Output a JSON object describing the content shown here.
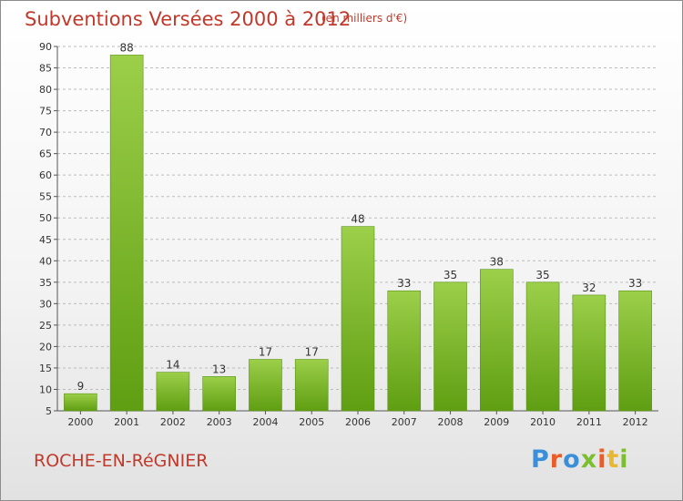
{
  "title": "Subventions Versées 2000 à 2012",
  "unit": "(en milliers d'€)",
  "commune": "ROCHE-EN-RéGNIER",
  "logo": {
    "text": "Proxiti",
    "letter_colors": [
      "#3b8fd9",
      "#e85d2a",
      "#3b8fd9",
      "#7bbf2e",
      "#e85d2a",
      "#e8b830",
      "#7bbf2e"
    ]
  },
  "colors": {
    "title": "#c0392b",
    "bar_light": "#9ccf4a",
    "bar_dark": "#5f9e12",
    "grid": "#bbbbbb"
  },
  "chart_data": {
    "type": "bar",
    "categories": [
      "2000",
      "2001",
      "2002",
      "2003",
      "2004",
      "2005",
      "2006",
      "2007",
      "2008",
      "2009",
      "2010",
      "2011",
      "2012"
    ],
    "values": [
      9,
      88,
      14,
      13,
      17,
      17,
      48,
      33,
      35,
      38,
      35,
      32,
      33
    ],
    "ylim": [
      5,
      90
    ],
    "yticks": [
      5,
      10,
      15,
      20,
      25,
      30,
      35,
      40,
      45,
      50,
      55,
      60,
      65,
      70,
      75,
      80,
      85,
      90
    ],
    "grid": true,
    "grid_style": "dashed",
    "xlabel": "",
    "ylabel": ""
  }
}
